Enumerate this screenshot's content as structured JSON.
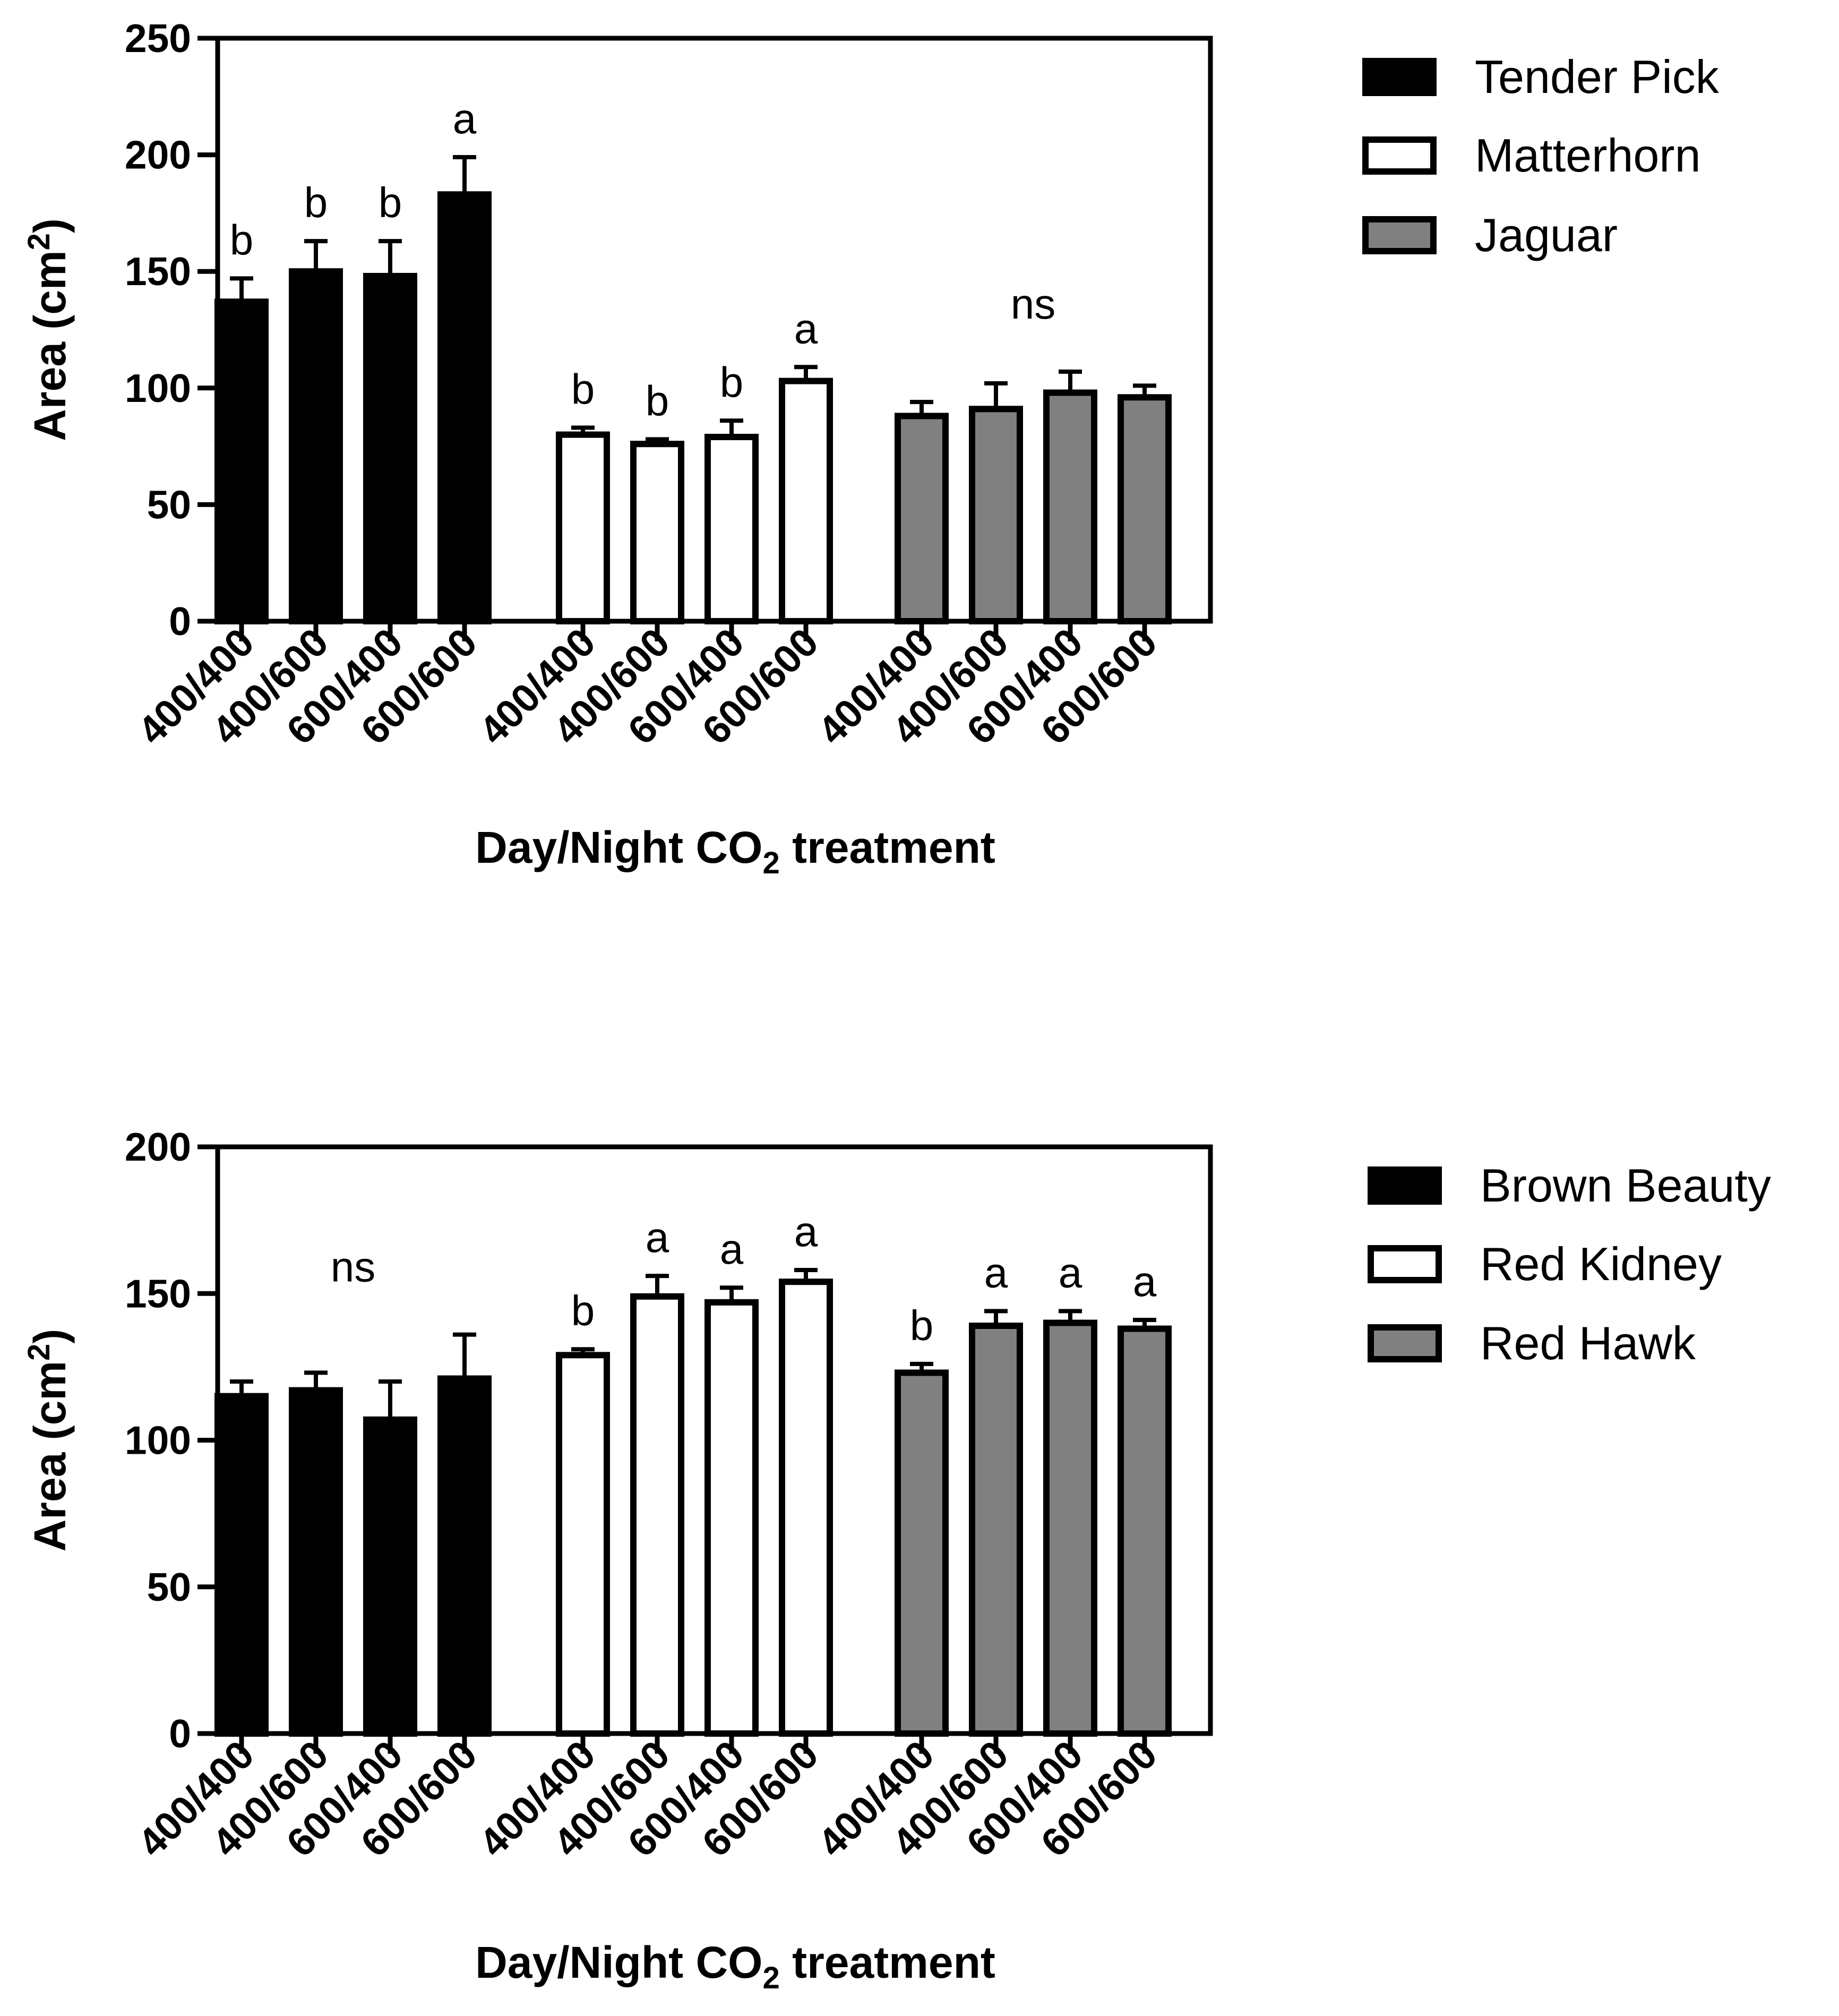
{
  "chart_data": [
    {
      "type": "bar",
      "title": "",
      "xlabel": "Day/Night CO2 treatment",
      "xlabel_main": "Day/Night CO",
      "xlabel_sub": "2",
      "xlabel_tail": " treatment",
      "ylabel": "Area (cm2)",
      "ylabel_main": "Area (cm",
      "ylabel_sup": "2",
      "ylabel_tail": ")",
      "ylim": [
        0,
        250
      ],
      "yticks": [
        0,
        50,
        100,
        150,
        200,
        250
      ],
      "groups": [
        {
          "name": "Tender Pick",
          "color": "#000000",
          "categories": [
            "400/400",
            "400/600",
            "600/400",
            "600/600"
          ],
          "values": [
            137,
            150,
            148,
            183
          ],
          "errors": [
            10,
            13,
            15,
            16
          ],
          "letters": [
            "b",
            "b",
            "b",
            "a"
          ]
        },
        {
          "name": "Matterhorn",
          "color": "#ffffff",
          "categories": [
            "400/400",
            "400/600",
            "600/400",
            "600/600"
          ],
          "values": [
            80,
            76,
            79,
            103
          ],
          "errors": [
            3,
            2,
            7,
            6
          ],
          "letters": [
            "b",
            "b",
            "b",
            "a"
          ]
        },
        {
          "name": "Jaguar",
          "color": "#808080",
          "categories": [
            "400/400",
            "400/600",
            "600/400",
            "600/600"
          ],
          "values": [
            88,
            91,
            98,
            96
          ],
          "errors": [
            6,
            11,
            9,
            5
          ],
          "group_letter": "ns"
        }
      ],
      "legend": [
        "Tender Pick",
        "Matterhorn",
        "Jaguar"
      ],
      "legend_position": "right"
    },
    {
      "type": "bar",
      "title": "",
      "xlabel": "Day/Night CO2 treatment",
      "xlabel_main": "Day/Night CO",
      "xlabel_sub": "2",
      "xlabel_tail": " treatment",
      "ylabel": "Area (cm2)",
      "ylabel_main": "Area (cm",
      "ylabel_sup": "2",
      "ylabel_tail": ")",
      "ylim": [
        0,
        200
      ],
      "yticks": [
        0,
        50,
        100,
        150,
        200
      ],
      "groups": [
        {
          "name": "Brown Beauty",
          "color": "#000000",
          "categories": [
            "400/400",
            "400/600",
            "600/400",
            "600/600"
          ],
          "values": [
            115,
            117,
            107,
            121
          ],
          "errors": [
            5,
            6,
            13,
            15
          ],
          "group_letter": "ns"
        },
        {
          "name": "Red Kidney",
          "color": "#ffffff",
          "categories": [
            "400/400",
            "400/600",
            "600/400",
            "600/600"
          ],
          "values": [
            129,
            149,
            147,
            154
          ],
          "errors": [
            2,
            7,
            5,
            4
          ],
          "letters": [
            "b",
            "a",
            "a",
            "a"
          ]
        },
        {
          "name": "Red Hawk",
          "color": "#808080",
          "categories": [
            "400/400",
            "400/600",
            "600/400",
            "600/600"
          ],
          "values": [
            123,
            139,
            140,
            138
          ],
          "errors": [
            3,
            5,
            4,
            3
          ],
          "letters": [
            "b",
            "a",
            "a",
            "a"
          ]
        }
      ],
      "legend": [
        "Brown Beauty",
        "Red Kidney",
        "Red Hawk"
      ],
      "legend_position": "right"
    }
  ]
}
